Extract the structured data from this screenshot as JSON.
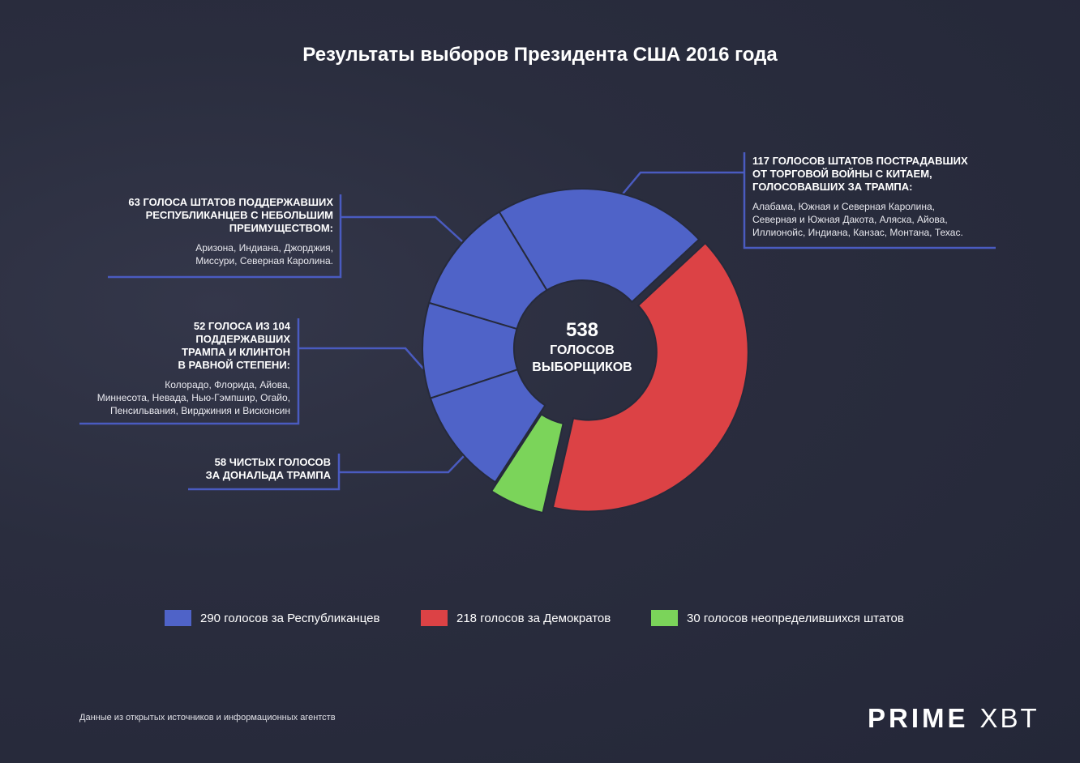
{
  "chart_data": {
    "type": "pie",
    "title": "Результаты выборов Президента США 2016 года",
    "donut": true,
    "center_value": 538,
    "center_label": [
      "ГОЛОСОВ",
      "ВЫБОРЩИКОВ"
    ],
    "series": [
      {
        "name": "290 голосов за Республиканцев",
        "color": "#4f63c8",
        "values": [
          117,
          63,
          52,
          58
        ]
      },
      {
        "name": "218 голосов за Демократов",
        "color": "#dc4245",
        "values": [
          218
        ]
      },
      {
        "name": "30 голосов неопределившихся штатов",
        "color": "#7bd45a",
        "values": [
          30
        ]
      }
    ],
    "annotations": [
      {
        "title": [
          "117 ГОЛОСОВ ШТАТОВ ПОСТРАДАВШИХ",
          "ОТ ТОРГОВОЙ ВОЙНЫ С КИТАЕМ,",
          "ГОЛОСОВАВШИХ ЗА ТРАМПА:"
        ],
        "text": [
          "Алабама, Южная и Северная Каролина,",
          "Северная и Южная Дакота, Аляска, Айова,",
          "Иллионойс, Индиана, Канзас, Монтана, Техас."
        ]
      },
      {
        "title": [
          "63 ГОЛОСА ШТАТОВ ПОДДЕРЖАВШИХ",
          "РЕСПУБЛИКАНЦЕВ С НЕБОЛЬШИМ",
          "ПРЕИМУЩЕСТВОМ:"
        ],
        "text": [
          "Аризона, Индиана, Джорджия,",
          "Миссури, Северная Каролина."
        ]
      },
      {
        "title": [
          "52 ГОЛОСА ИЗ 104",
          "ПОДДЕРЖАВШИХ",
          "ТРАМПА И КЛИНТОН",
          "В РАВНОЙ СТЕПЕНИ:"
        ],
        "text": [
          "Колорадо, Флорида, Айова,",
          "Миннесота, Невада, Нью-Гэмпшир, Огайо,",
          "Пенсильвания, Вирджиния и Висконсин"
        ]
      },
      {
        "title": [
          "58 ЧИСТЫХ ГОЛОСОВ",
          "ЗА ДОНАЛЬДА ТРАМПА"
        ],
        "text": []
      }
    ]
  },
  "source": "Данные из открытых источников и информационных агентств",
  "logo": {
    "left": "PRIME",
    "right": "XBT"
  }
}
